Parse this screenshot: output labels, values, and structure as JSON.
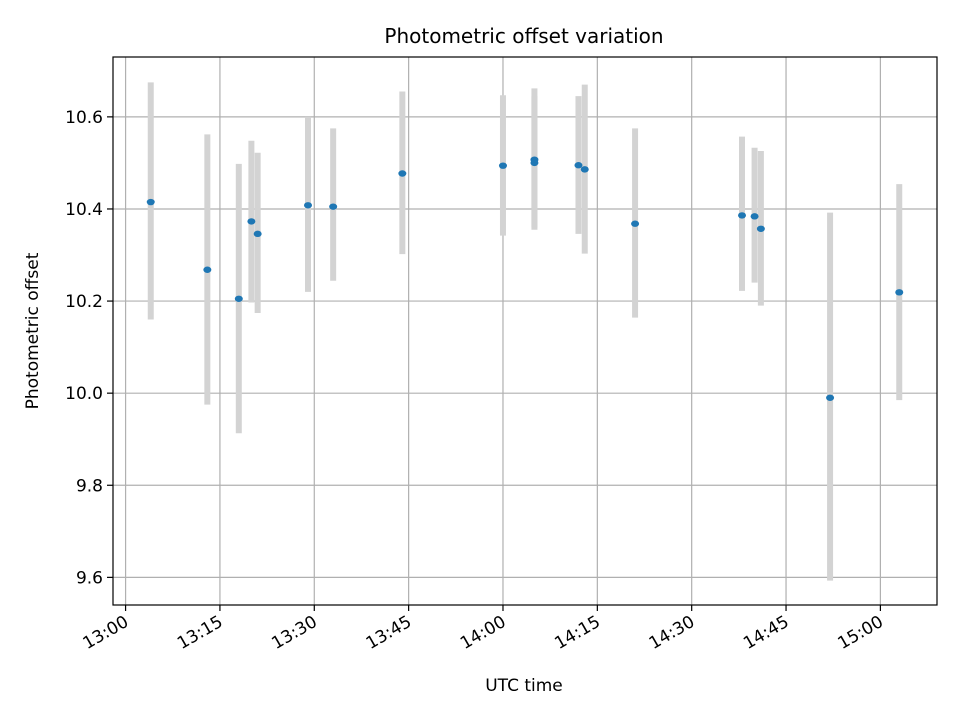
{
  "chart_data": {
    "type": "scatter",
    "title": "Photometric offset variation",
    "xlabel": "UTC time",
    "ylabel": "Photometric offset",
    "xlim": [
      "12:58",
      "15:09"
    ],
    "ylim": [
      9.54,
      10.73
    ],
    "x_ticks": [
      "13:00",
      "13:15",
      "13:30",
      "13:45",
      "14:00",
      "14:15",
      "14:30",
      "14:45",
      "15:00"
    ],
    "y_ticks": [
      "9.6",
      "9.8",
      "10.0",
      "10.2",
      "10.4",
      "10.6"
    ],
    "grid": true,
    "colors": {
      "marker": "#1f77b4",
      "error_bar": "#d3d3d3",
      "grid": "#b0b0b0",
      "axis": "#000000"
    },
    "series": [
      {
        "points": [
          {
            "x": "13:04",
            "y": 10.415,
            "ylo": 10.16,
            "yhi": 10.675
          },
          {
            "x": "13:13",
            "y": 10.268,
            "ylo": 9.975,
            "yhi": 10.562
          },
          {
            "x": "13:18",
            "y": 10.205,
            "ylo": 9.913,
            "yhi": 10.498
          },
          {
            "x": "13:20",
            "y": 10.373,
            "ylo": 10.197,
            "yhi": 10.548
          },
          {
            "x": "13:21",
            "y": 10.346,
            "ylo": 10.174,
            "yhi": 10.522
          },
          {
            "x": "13:29",
            "y": 10.408,
            "ylo": 10.22,
            "yhi": 10.6
          },
          {
            "x": "13:33",
            "y": 10.405,
            "ylo": 10.244,
            "yhi": 10.575
          },
          {
            "x": "13:44",
            "y": 10.477,
            "ylo": 10.302,
            "yhi": 10.655
          },
          {
            "x": "14:00",
            "y": 10.494,
            "ylo": 10.342,
            "yhi": 10.647
          },
          {
            "x": "14:05",
            "y": 10.5,
            "ylo": 10.355,
            "yhi": 10.645
          },
          {
            "x": "14:05",
            "y": 10.507,
            "ylo": 10.36,
            "yhi": 10.662
          },
          {
            "x": "14:12",
            "y": 10.495,
            "ylo": 10.346,
            "yhi": 10.645
          },
          {
            "x": "14:13",
            "y": 10.486,
            "ylo": 10.303,
            "yhi": 10.67
          },
          {
            "x": "14:21",
            "y": 10.368,
            "ylo": 10.164,
            "yhi": 10.575
          },
          {
            "x": "14:38",
            "y": 10.386,
            "ylo": 10.222,
            "yhi": 10.557
          },
          {
            "x": "14:40",
            "y": 10.384,
            "ylo": 10.24,
            "yhi": 10.533
          },
          {
            "x": "14:41",
            "y": 10.357,
            "ylo": 10.19,
            "yhi": 10.526
          },
          {
            "x": "14:52",
            "y": 9.99,
            "ylo": 9.593,
            "yhi": 10.392
          },
          {
            "x": "15:03",
            "y": 10.219,
            "ylo": 9.985,
            "yhi": 10.454
          }
        ]
      }
    ]
  }
}
